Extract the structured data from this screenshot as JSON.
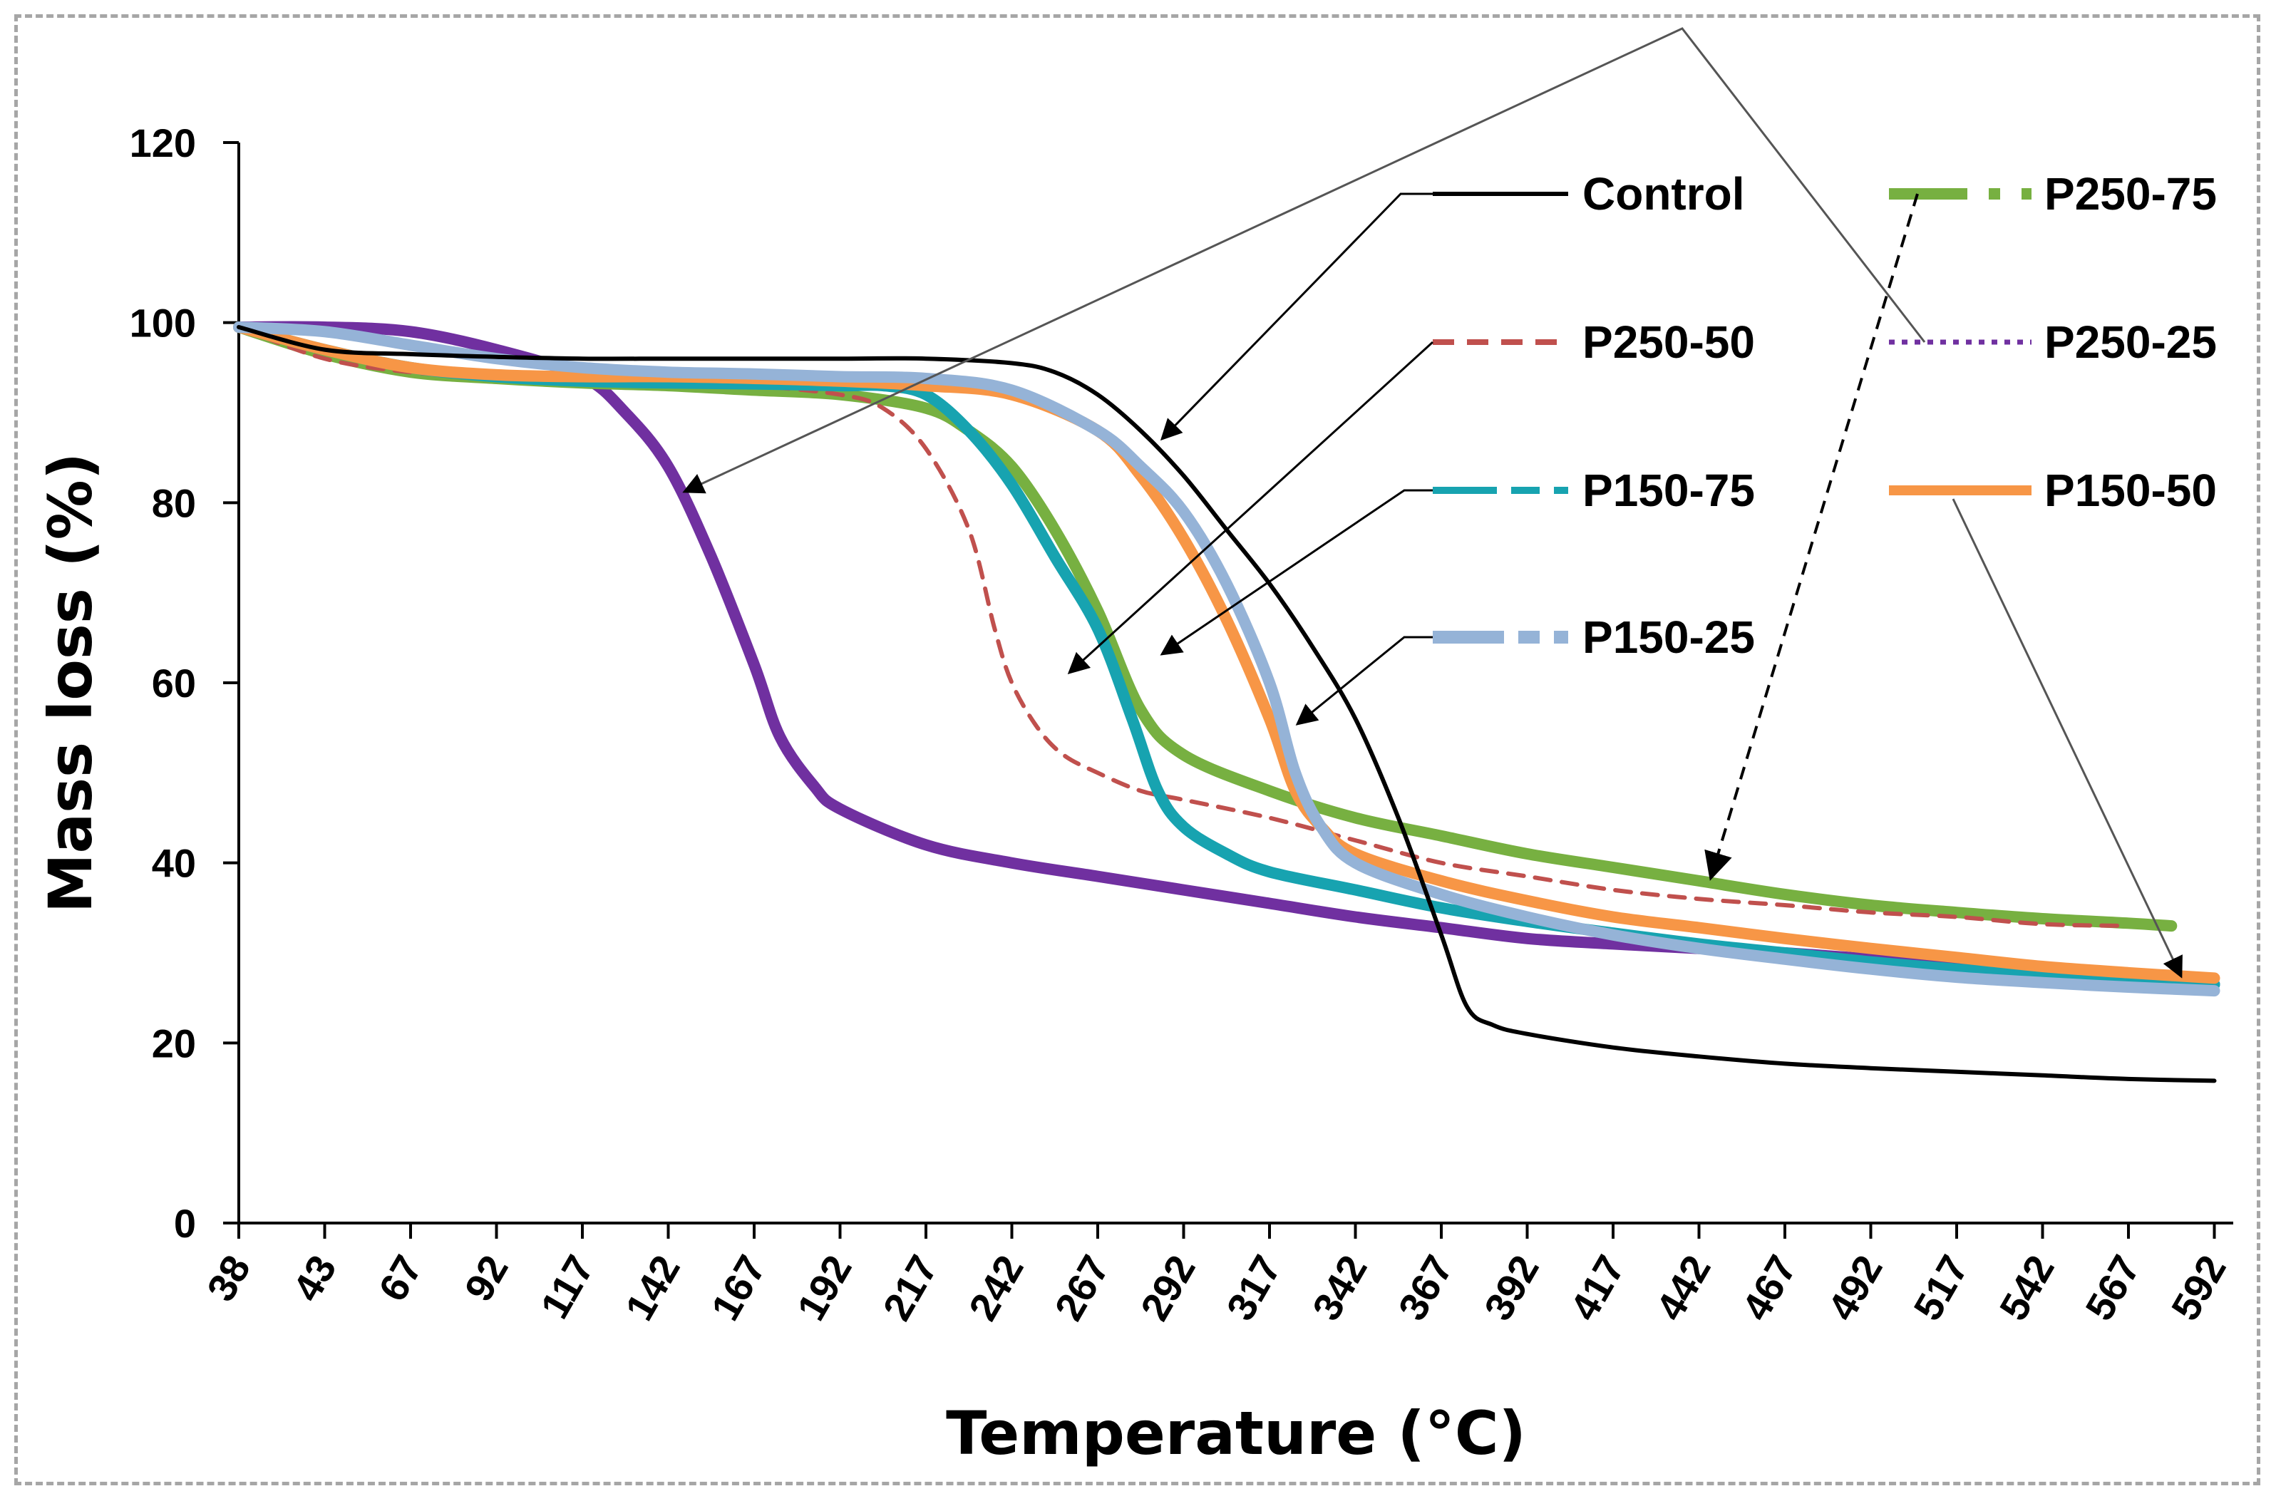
{
  "chart_data": {
    "type": "line",
    "title": "",
    "xlabel": "Temperature (°C)",
    "ylabel": "Mass loss  (%)",
    "x_ticks": [
      "38",
      "43",
      "67",
      "92",
      "117",
      "142",
      "167",
      "192",
      "217",
      "242",
      "267",
      "292",
      "317",
      "342",
      "367",
      "392",
      "417",
      "442",
      "467",
      "492",
      "517",
      "542",
      "567",
      "592"
    ],
    "ylim": [
      0,
      120
    ],
    "y_ticks": [
      0,
      20,
      40,
      60,
      80,
      100,
      120
    ],
    "grid": false,
    "legend_position": "top-right",
    "series": [
      {
        "name": "Control",
        "color": "#000000",
        "style": "solid-thin",
        "points": [
          [
            0,
            99.5
          ],
          [
            1,
            97
          ],
          [
            2,
            96.5
          ],
          [
            3,
            96.2
          ],
          [
            4,
            96
          ],
          [
            5,
            96
          ],
          [
            6,
            96
          ],
          [
            7,
            96
          ],
          [
            8,
            96
          ],
          [
            9,
            95.5
          ],
          [
            9.5,
            94.5
          ],
          [
            10,
            92
          ],
          [
            10.5,
            88
          ],
          [
            11,
            83
          ],
          [
            11.5,
            77
          ],
          [
            12,
            71
          ],
          [
            12.5,
            64
          ],
          [
            13,
            56
          ],
          [
            13.5,
            45
          ],
          [
            14,
            32
          ],
          [
            14.3,
            24
          ],
          [
            14.6,
            22
          ],
          [
            15,
            21
          ],
          [
            16,
            19.5
          ],
          [
            17,
            18.5
          ],
          [
            18,
            17.7
          ],
          [
            19,
            17.2
          ],
          [
            20,
            16.8
          ],
          [
            21,
            16.4
          ],
          [
            22,
            16
          ],
          [
            23,
            15.8
          ]
        ]
      },
      {
        "name": "P250-50",
        "color": "#c0504d",
        "style": "dashed",
        "points": [
          [
            0,
            99.5
          ],
          [
            1,
            96
          ],
          [
            2,
            94.5
          ],
          [
            3,
            94
          ],
          [
            4,
            93.8
          ],
          [
            5,
            93.5
          ],
          [
            6,
            93
          ],
          [
            7,
            92
          ],
          [
            7.5,
            90.5
          ],
          [
            8,
            86
          ],
          [
            8.5,
            77
          ],
          [
            8.8,
            66
          ],
          [
            9,
            60
          ],
          [
            9.3,
            55
          ],
          [
            9.6,
            52
          ],
          [
            10,
            50
          ],
          [
            10.5,
            48
          ],
          [
            11,
            47
          ],
          [
            12,
            45
          ],
          [
            13,
            42.5
          ],
          [
            14,
            40
          ],
          [
            15,
            38.5
          ],
          [
            16,
            37
          ],
          [
            17,
            36
          ],
          [
            18,
            35.3
          ],
          [
            19,
            34.5
          ],
          [
            20,
            34
          ],
          [
            21,
            33.2
          ],
          [
            22,
            33
          ]
        ]
      },
      {
        "name": "P150-75",
        "color": "#17a3b0",
        "style": "thick",
        "points": [
          [
            0,
            99.5
          ],
          [
            1,
            97
          ],
          [
            2,
            95
          ],
          [
            3,
            94
          ],
          [
            4,
            93.5
          ],
          [
            5,
            93.3
          ],
          [
            6,
            93.2
          ],
          [
            7,
            93
          ],
          [
            7.5,
            93
          ],
          [
            8,
            92
          ],
          [
            8.5,
            88
          ],
          [
            9,
            82
          ],
          [
            9.5,
            74
          ],
          [
            10,
            66
          ],
          [
            10.4,
            56
          ],
          [
            10.7,
            48
          ],
          [
            11,
            44
          ],
          [
            11.5,
            41
          ],
          [
            12,
            39
          ],
          [
            13,
            37
          ],
          [
            14,
            35
          ],
          [
            15,
            33.5
          ],
          [
            16,
            32.2
          ],
          [
            17,
            31
          ],
          [
            18,
            30
          ],
          [
            19,
            29
          ],
          [
            20,
            28.2
          ],
          [
            21,
            27.5
          ],
          [
            22,
            27
          ],
          [
            23,
            26.5
          ]
        ]
      },
      {
        "name": "P150-25",
        "color": "#95b3d7",
        "style": "thick",
        "points": [
          [
            0,
            99.5
          ],
          [
            1,
            99
          ],
          [
            2,
            97.5
          ],
          [
            3,
            96
          ],
          [
            4,
            95
          ],
          [
            5,
            94.5
          ],
          [
            6,
            94.3
          ],
          [
            7,
            94
          ],
          [
            8,
            93.8
          ],
          [
            9,
            92.5
          ],
          [
            10,
            88
          ],
          [
            10.5,
            84
          ],
          [
            11,
            79
          ],
          [
            11.5,
            71
          ],
          [
            12,
            60
          ],
          [
            12.3,
            50
          ],
          [
            12.6,
            44
          ],
          [
            13,
            40
          ],
          [
            14,
            36.5
          ],
          [
            15,
            34
          ],
          [
            16,
            32
          ],
          [
            17,
            30.5
          ],
          [
            18,
            29.3
          ],
          [
            19,
            28.2
          ],
          [
            20,
            27.3
          ],
          [
            21,
            26.7
          ],
          [
            22,
            26.2
          ],
          [
            23,
            25.8
          ]
        ]
      },
      {
        "name": "P250-75",
        "color": "#77b041",
        "style": "thick",
        "points": [
          [
            0,
            99.5
          ],
          [
            1,
            96.5
          ],
          [
            2,
            94.5
          ],
          [
            3,
            93.8
          ],
          [
            4,
            93.3
          ],
          [
            5,
            93
          ],
          [
            6,
            92.5
          ],
          [
            7,
            92
          ],
          [
            8,
            90.5
          ],
          [
            8.5,
            88
          ],
          [
            9,
            84
          ],
          [
            9.5,
            77
          ],
          [
            10,
            68
          ],
          [
            10.5,
            57
          ],
          [
            11,
            52
          ],
          [
            12,
            48
          ],
          [
            13,
            45
          ],
          [
            14,
            43
          ],
          [
            15,
            41
          ],
          [
            16,
            39.5
          ],
          [
            17,
            38
          ],
          [
            18,
            36.5
          ],
          [
            19,
            35.3
          ],
          [
            20,
            34.5
          ],
          [
            21,
            33.8
          ],
          [
            22,
            33.3
          ],
          [
            22.5,
            33
          ]
        ]
      },
      {
        "name": "P250-25",
        "color": "#7030a0",
        "style": "thick",
        "points": [
          [
            0,
            99.5
          ],
          [
            1,
            99.5
          ],
          [
            2,
            99
          ],
          [
            3,
            97
          ],
          [
            4,
            94
          ],
          [
            4.5,
            90
          ],
          [
            5,
            84
          ],
          [
            5.5,
            74
          ],
          [
            6,
            62
          ],
          [
            6.3,
            54
          ],
          [
            6.7,
            48.5
          ],
          [
            7,
            46
          ],
          [
            8,
            42
          ],
          [
            9,
            40
          ],
          [
            10,
            38.5
          ],
          [
            11,
            37
          ],
          [
            12,
            35.5
          ],
          [
            13,
            34
          ],
          [
            14,
            32.8
          ],
          [
            15,
            31.6
          ],
          [
            16,
            31
          ],
          [
            17,
            30.5
          ],
          [
            18,
            30
          ],
          [
            19,
            29.3
          ],
          [
            20,
            28.5
          ],
          [
            21,
            27.8
          ],
          [
            22,
            27.2
          ],
          [
            23,
            26.5
          ]
        ]
      },
      {
        "name": "P150-50",
        "color": "#f79646",
        "style": "thick",
        "points": [
          [
            0,
            99.5
          ],
          [
            1,
            97
          ],
          [
            2,
            95
          ],
          [
            3,
            94.2
          ],
          [
            4,
            94
          ],
          [
            5,
            94
          ],
          [
            6,
            93.8
          ],
          [
            7,
            93.5
          ],
          [
            8,
            93
          ],
          [
            9,
            92
          ],
          [
            10,
            88
          ],
          [
            10.5,
            83
          ],
          [
            11,
            76
          ],
          [
            11.5,
            67
          ],
          [
            12,
            56
          ],
          [
            12.3,
            48
          ],
          [
            12.6,
            44
          ],
          [
            13,
            41
          ],
          [
            14,
            38
          ],
          [
            15,
            35.8
          ],
          [
            16,
            34
          ],
          [
            17,
            32.8
          ],
          [
            18,
            31.6
          ],
          [
            19,
            30.5
          ],
          [
            20,
            29.5
          ],
          [
            21,
            28.5
          ],
          [
            22,
            27.8
          ],
          [
            23,
            27.2
          ]
        ]
      }
    ],
    "annotations": "arrows connect each legend label to its curve"
  }
}
